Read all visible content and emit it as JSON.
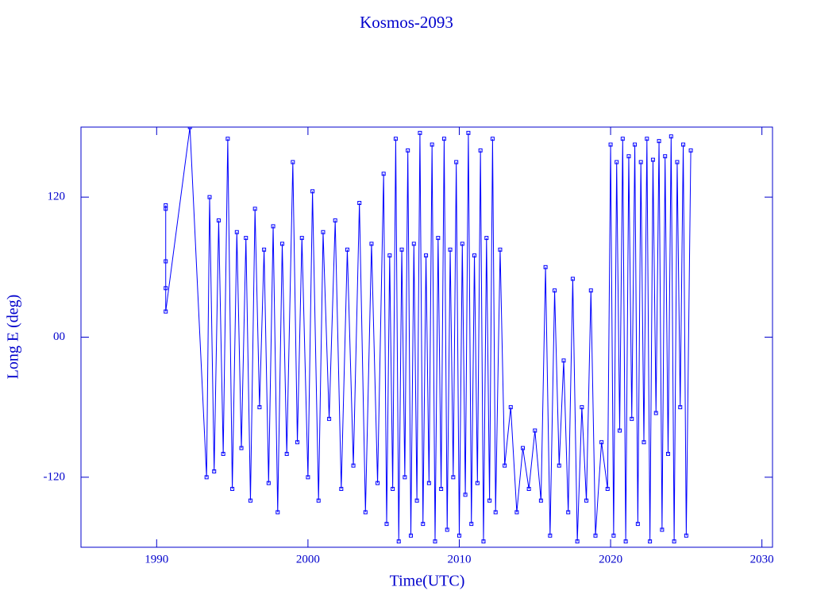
{
  "chart_data": {
    "type": "line",
    "title": "Kosmos-2093",
    "xlabel": "Time(UTC)",
    "ylabel": "Long E (deg)",
    "color": "#0000ff",
    "xlim": [
      1985,
      2030.7
    ],
    "xticks": [
      1990,
      2000,
      2010,
      2020,
      2030
    ],
    "ylim": [
      -180,
      180
    ],
    "yticks": [
      -120,
      {
        "value": 0,
        "label": "00"
      },
      120
    ],
    "x": [
      1990.6,
      1990.6,
      1990.6,
      1990.6,
      1990.6,
      1992.2,
      1993.3,
      1993.5,
      1993.8,
      1994.1,
      1994.4,
      1994.7,
      1995.0,
      1995.3,
      1995.6,
      1995.9,
      1996.2,
      1996.5,
      1996.8,
      1997.1,
      1997.4,
      1997.7,
      1998.0,
      1998.3,
      1998.6,
      1999.0,
      1999.3,
      1999.6,
      2000.0,
      2000.3,
      2000.7,
      2001.0,
      2001.4,
      2001.8,
      2002.2,
      2002.6,
      2003.0,
      2003.4,
      2003.8,
      2004.2,
      2004.6,
      2005.0,
      2005.2,
      2005.4,
      2005.6,
      2005.8,
      2006.0,
      2006.2,
      2006.4,
      2006.6,
      2006.8,
      2007.0,
      2007.2,
      2007.4,
      2007.6,
      2007.8,
      2008.0,
      2008.2,
      2008.4,
      2008.6,
      2008.8,
      2009.0,
      2009.2,
      2009.4,
      2009.6,
      2009.8,
      2010.0,
      2010.2,
      2010.4,
      2010.6,
      2010.8,
      2011.0,
      2011.2,
      2011.4,
      2011.6,
      2011.8,
      2012.0,
      2012.2,
      2012.4,
      2012.7,
      2013.0,
      2013.4,
      2013.8,
      2014.2,
      2014.6,
      2015.0,
      2015.4,
      2015.7,
      2016.0,
      2016.3,
      2016.6,
      2016.9,
      2017.2,
      2017.5,
      2017.8,
      2018.1,
      2018.4,
      2018.7,
      2019.0,
      2019.4,
      2019.8,
      2020.0,
      2020.2,
      2020.4,
      2020.6,
      2020.8,
      2021.0,
      2021.2,
      2021.4,
      2021.6,
      2021.8,
      2022.0,
      2022.2,
      2022.4,
      2022.6,
      2022.8,
      2023.0,
      2023.2,
      2023.4,
      2023.6,
      2023.8,
      2024.0,
      2024.2,
      2024.4,
      2024.6,
      2024.8,
      2025.0,
      2025.3
    ],
    "values": [
      113,
      110,
      65,
      42,
      22,
      180,
      -120,
      120,
      -115,
      100,
      -100,
      170,
      -130,
      90,
      -95,
      85,
      -140,
      110,
      -60,
      75,
      -125,
      95,
      -150,
      80,
      -100,
      150,
      -90,
      85,
      -120,
      125,
      -140,
      90,
      -70,
      100,
      -130,
      75,
      -110,
      115,
      -150,
      80,
      -125,
      140,
      -160,
      70,
      -130,
      170,
      -175,
      75,
      -120,
      160,
      -170,
      80,
      -140,
      175,
      -160,
      70,
      -125,
      165,
      -175,
      85,
      -130,
      170,
      -165,
      75,
      -120,
      150,
      -170,
      80,
      -135,
      175,
      -160,
      70,
      -125,
      160,
      -175,
      85,
      -140,
      170,
      -150,
      75,
      -110,
      -60,
      -150,
      -95,
      -130,
      -80,
      -140,
      60,
      -170,
      40,
      -110,
      -20,
      -150,
      50,
      -175,
      -60,
      -140,
      40,
      -170,
      -90,
      -130,
      165,
      -170,
      150,
      -80,
      170,
      -175,
      155,
      -70,
      165,
      -160,
      150,
      -90,
      170,
      -175,
      152,
      -65,
      168,
      -165,
      155,
      -100,
      172,
      -175,
      150,
      -60,
      165,
      -170,
      160
    ]
  }
}
